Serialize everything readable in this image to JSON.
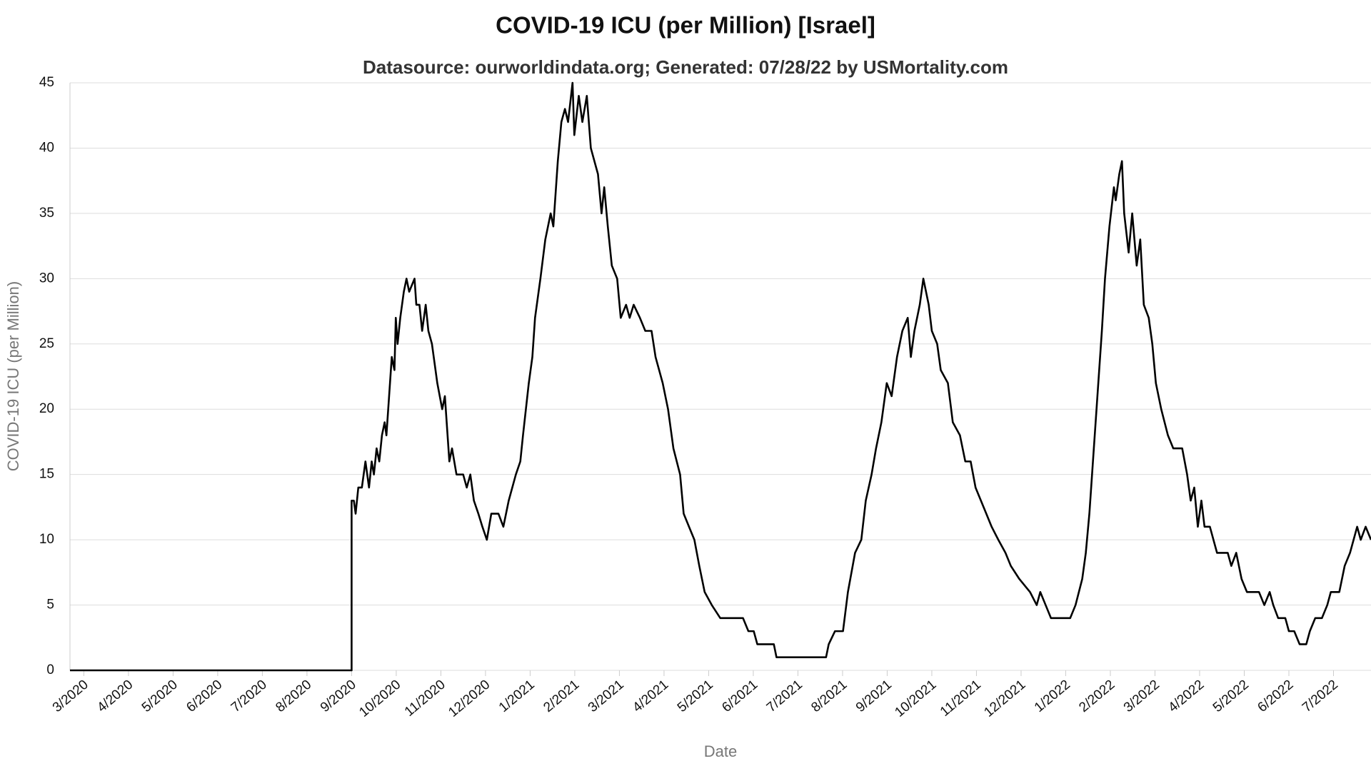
{
  "chart_data": {
    "type": "line",
    "title": "COVID-19 ICU (per Million) [Israel]",
    "subtitle": "Datasource: ourworldindata.org; Generated: 07/28/22 by USMortality.com",
    "x_label": "Date",
    "y_label": "COVID-19 ICU (per Million)",
    "color": "#000000",
    "grid": true,
    "xlim": [
      -0.31,
      28.84
    ],
    "ylim": [
      0,
      45
    ],
    "yticks": [
      0,
      5,
      10,
      15,
      20,
      25,
      30,
      35,
      40,
      45
    ],
    "xticks": [
      {
        "value": 0,
        "label": "3/2020"
      },
      {
        "value": 1,
        "label": "4/2020"
      },
      {
        "value": 2,
        "label": "5/2020"
      },
      {
        "value": 3,
        "label": "6/2020"
      },
      {
        "value": 4,
        "label": "7/2020"
      },
      {
        "value": 5,
        "label": "8/2020"
      },
      {
        "value": 6,
        "label": "9/2020"
      },
      {
        "value": 7,
        "label": "10/2020"
      },
      {
        "value": 8,
        "label": "11/2020"
      },
      {
        "value": 9,
        "label": "12/2020"
      },
      {
        "value": 10,
        "label": "1/2021"
      },
      {
        "value": 11,
        "label": "2/2021"
      },
      {
        "value": 12,
        "label": "3/2021"
      },
      {
        "value": 13,
        "label": "4/2021"
      },
      {
        "value": 14,
        "label": "5/2021"
      },
      {
        "value": 15,
        "label": "6/2021"
      },
      {
        "value": 16,
        "label": "7/2021"
      },
      {
        "value": 17,
        "label": "8/2021"
      },
      {
        "value": 18,
        "label": "9/2021"
      },
      {
        "value": 19,
        "label": "10/2021"
      },
      {
        "value": 20,
        "label": "11/2021"
      },
      {
        "value": 21,
        "label": "12/2021"
      },
      {
        "value": 22,
        "label": "1/2022"
      },
      {
        "value": 23,
        "label": "2/2022"
      },
      {
        "value": 24,
        "label": "3/2022"
      },
      {
        "value": 25,
        "label": "4/2022"
      },
      {
        "value": 26,
        "label": "5/2022"
      },
      {
        "value": 27,
        "label": "6/2022"
      },
      {
        "value": 28,
        "label": "7/2022"
      }
    ],
    "x": [
      -0.31,
      6.0,
      6.0,
      6.05,
      6.09,
      6.15,
      6.23,
      6.31,
      6.39,
      6.45,
      6.5,
      6.56,
      6.62,
      6.68,
      6.74,
      6.78,
      6.84,
      6.9,
      6.96,
      6.99,
      7.03,
      7.09,
      7.17,
      7.23,
      7.29,
      7.41,
      7.45,
      7.52,
      7.58,
      7.66,
      7.72,
      7.8,
      7.92,
      8.03,
      8.09,
      8.19,
      8.25,
      8.35,
      8.5,
      8.58,
      8.66,
      8.74,
      8.84,
      8.93,
      9.03,
      9.13,
      9.29,
      9.4,
      9.52,
      9.68,
      9.78,
      9.84,
      9.97,
      10.05,
      10.11,
      10.23,
      10.34,
      10.46,
      10.52,
      10.62,
      10.7,
      10.78,
      10.85,
      10.95,
      10.99,
      11.09,
      11.17,
      11.27,
      11.36,
      11.44,
      11.52,
      11.6,
      11.66,
      11.74,
      11.83,
      11.95,
      12.03,
      12.15,
      12.23,
      12.32,
      12.46,
      12.58,
      12.72,
      12.81,
      12.97,
      13.09,
      13.21,
      13.36,
      13.44,
      13.56,
      13.68,
      13.79,
      13.91,
      14.07,
      14.26,
      14.77,
      14.89,
      15.01,
      15.09,
      15.46,
      15.52,
      16.63,
      16.69,
      16.83,
      17.01,
      17.12,
      17.28,
      17.42,
      17.52,
      17.65,
      17.75,
      17.87,
      17.99,
      18.1,
      18.22,
      18.34,
      18.46,
      18.53,
      18.61,
      18.73,
      18.81,
      18.93,
      19.0,
      19.12,
      19.2,
      19.36,
      19.47,
      19.63,
      19.75,
      19.87,
      19.98,
      20.1,
      20.22,
      20.34,
      20.49,
      20.65,
      20.77,
      20.96,
      21.2,
      21.35,
      21.43,
      21.55,
      21.67,
      22.1,
      22.22,
      22.37,
      22.45,
      22.53,
      22.61,
      22.71,
      22.81,
      22.88,
      22.98,
      23.08,
      23.12,
      23.2,
      23.26,
      23.31,
      23.41,
      23.49,
      23.59,
      23.67,
      23.75,
      23.86,
      23.94,
      24.02,
      24.14,
      24.29,
      24.41,
      24.61,
      24.72,
      24.8,
      24.88,
      24.96,
      25.04,
      25.11,
      25.23,
      25.39,
      25.63,
      25.71,
      25.82,
      25.94,
      26.06,
      26.33,
      26.45,
      26.57,
      26.65,
      26.76,
      26.92,
      27.0,
      27.12,
      27.24,
      27.39,
      27.47,
      27.59,
      27.74,
      27.86,
      27.94,
      28.13,
      28.25,
      28.37,
      28.45,
      28.53,
      28.61,
      28.72,
      28.84
    ],
    "values": [
      0,
      0,
      13,
      13,
      12,
      14,
      14,
      16,
      14,
      16,
      15,
      17,
      16,
      18,
      19,
      18,
      21,
      24,
      23,
      27,
      25,
      27,
      29,
      30,
      29,
      30,
      28,
      28,
      26,
      28,
      26,
      25,
      22,
      20,
      21,
      16,
      17,
      15,
      15,
      14,
      15,
      13,
      12,
      11,
      10,
      12,
      12,
      11,
      13,
      15,
      16,
      18,
      22,
      24,
      27,
      30,
      33,
      35,
      34,
      39,
      42,
      43,
      42,
      45,
      41,
      44,
      42,
      44,
      40,
      39,
      38,
      35,
      37,
      34,
      31,
      30,
      27,
      28,
      27,
      28,
      27,
      26,
      26,
      24,
      22,
      20,
      17,
      15,
      12,
      11,
      10,
      8,
      6,
      5,
      4,
      4,
      3,
      3,
      2,
      2,
      1,
      1,
      2,
      3,
      3,
      6,
      9,
      10,
      13,
      15,
      17,
      19,
      22,
      21,
      24,
      26,
      27,
      24,
      26,
      28,
      30,
      28,
      26,
      25,
      23,
      22,
      19,
      18,
      16,
      16,
      14,
      13,
      12,
      11,
      10,
      9,
      8,
      7,
      6,
      5,
      6,
      5,
      4,
      4,
      5,
      7,
      9,
      12,
      16,
      21,
      26,
      30,
      34,
      37,
      36,
      38,
      39,
      35,
      32,
      35,
      31,
      33,
      28,
      27,
      25,
      22,
      20,
      18,
      17,
      17,
      15,
      13,
      14,
      11,
      13,
      11,
      11,
      9,
      9,
      8,
      9,
      7,
      6,
      6,
      5,
      6,
      5,
      4,
      4,
      3,
      3,
      2,
      2,
      3,
      4,
      4,
      5,
      6,
      6,
      8,
      9,
      10,
      11,
      10,
      11,
      10
    ]
  }
}
